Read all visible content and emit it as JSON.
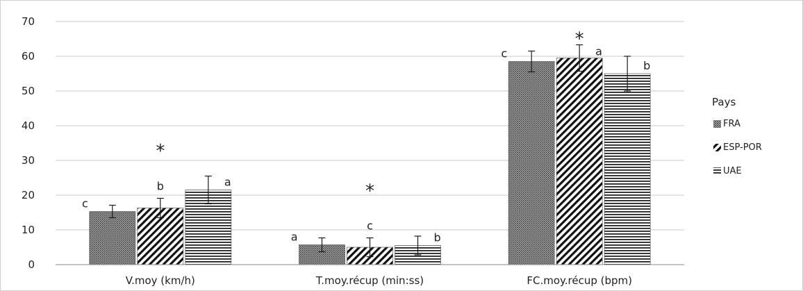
{
  "chart_data": {
    "type": "bar",
    "categories": [
      "V.moy (km/h)",
      "T.moy.récup (min:ss)",
      "FC.moy.récup (bpm)"
    ],
    "series": [
      {
        "name": "FRA",
        "pattern": "crosshatch",
        "values": [
          15.3,
          5.7,
          58.5
        ],
        "errors": [
          1.8,
          2.0,
          3.0
        ]
      },
      {
        "name": "ESP-POR",
        "pattern": "diagonal",
        "values": [
          16.3,
          5.0,
          59.5
        ],
        "errors": [
          2.8,
          2.7,
          3.8
        ]
      },
      {
        "name": "UAE",
        "pattern": "horizontal",
        "values": [
          21.5,
          5.5,
          55.0
        ],
        "errors": [
          4.0,
          2.7,
          5.0
        ]
      }
    ],
    "significance_letters": [
      [
        "c",
        "b",
        "a"
      ],
      [
        "a",
        "c",
        "b"
      ],
      [
        "c",
        "a",
        "b"
      ]
    ],
    "significance_marker": "*",
    "yticks": [
      "0",
      "10",
      "20",
      "30",
      "40",
      "50",
      "60",
      "70"
    ],
    "ylim": [
      0,
      70
    ],
    "grid": true,
    "legend_title": "Pays",
    "legend_position": "right",
    "xlabel": "",
    "ylabel": "",
    "colors": {
      "ink": "#1a1a1a",
      "grid": "#c8c8c8",
      "axis": "#888888"
    }
  }
}
